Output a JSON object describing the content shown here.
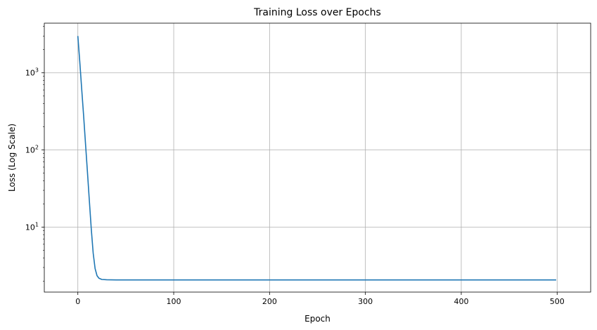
{
  "chart_data": {
    "type": "line",
    "title": "Training Loss over Epochs",
    "xlabel": "Epoch",
    "ylabel": "Loss (Log Scale)",
    "yscale": "log",
    "grid": true,
    "xlim": [
      -35,
      535
    ],
    "ylim": [
      1.44,
      4400
    ],
    "xticks": [
      0,
      100,
      200,
      300,
      400,
      500
    ],
    "xtick_labels": [
      "0",
      "100",
      "200",
      "300",
      "400",
      "500"
    ],
    "ytick_values": [
      10,
      100,
      1000
    ],
    "ytick_bases": [
      "10",
      "10",
      "10"
    ],
    "ytick_exponents": [
      "1",
      "2",
      "3"
    ],
    "series": [
      {
        "color": "#1f77b4",
        "x": [
          0,
          2,
          4,
          6,
          8,
          10,
          12,
          14,
          16,
          18,
          20,
          22,
          25,
          30,
          40,
          60,
          100,
          200,
          300,
          400,
          499
        ],
        "y": [
          3000,
          1400,
          620,
          280,
          120,
          52,
          22,
          9.5,
          4.6,
          2.9,
          2.35,
          2.18,
          2.1,
          2.08,
          2.07,
          2.07,
          2.07,
          2.07,
          2.07,
          2.07,
          2.07
        ]
      }
    ]
  }
}
